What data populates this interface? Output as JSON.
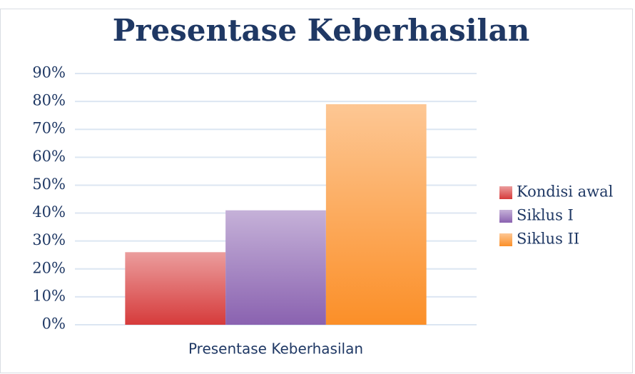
{
  "chart_data": {
    "type": "bar",
    "title": "Presentase Keberhasilan",
    "categories": [
      "Presentase Keberhasilan"
    ],
    "series": [
      {
        "name": "Kondisi awal",
        "color": "#d63b3b",
        "values": [
          26
        ]
      },
      {
        "name": "Siklus I",
        "color": "#8a62b0",
        "values": [
          41
        ]
      },
      {
        "name": "Siklus II",
        "color": "#fb8f28",
        "values": [
          79
        ]
      }
    ],
    "ylim": [
      0,
      90
    ],
    "yticks": [
      {
        "value": 0,
        "label": "0%"
      },
      {
        "value": 10,
        "label": "10%"
      },
      {
        "value": 20,
        "label": "20%"
      },
      {
        "value": 30,
        "label": "30%"
      },
      {
        "value": 40,
        "label": "40%"
      },
      {
        "value": 50,
        "label": "50%"
      },
      {
        "value": 60,
        "label": "60%"
      },
      {
        "value": 70,
        "label": "70%"
      },
      {
        "value": 80,
        "label": "80%"
      },
      {
        "value": 90,
        "label": "90%"
      }
    ],
    "grid": true,
    "legend": "right"
  }
}
